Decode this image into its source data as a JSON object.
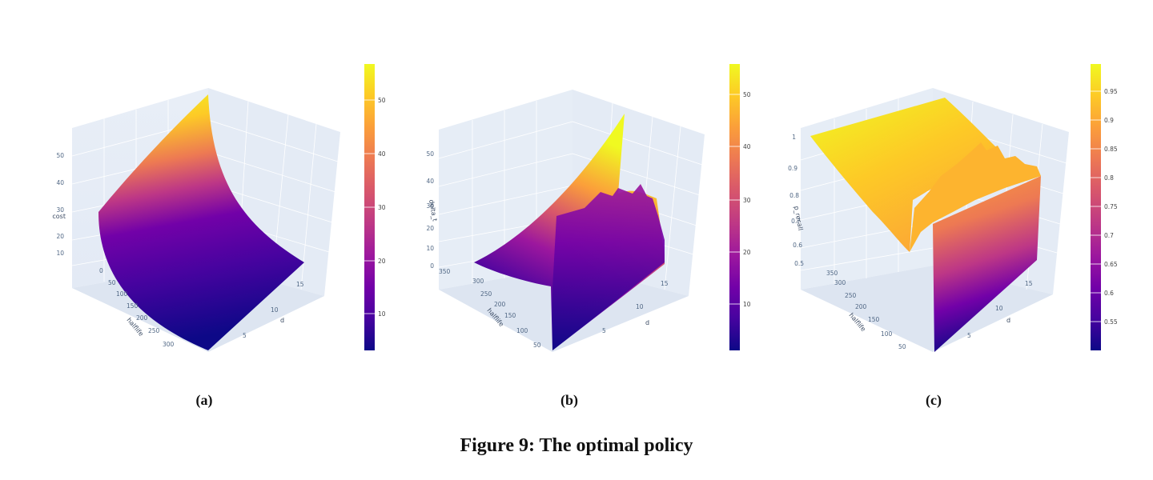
{
  "colors": {
    "scene_wall": "#e5ecf6",
    "grid": "#ffffff",
    "colorscale": [
      "#0d0887",
      "#46039f",
      "#7201a8",
      "#9c179e",
      "#bd3786",
      "#d8576b",
      "#ed7953",
      "#fb9f3a",
      "#fdca26",
      "#f0f921"
    ]
  },
  "figure_caption": "Figure 9: The optimal policy",
  "chart_data": [
    {
      "type": "surface3d",
      "label": "(a)",
      "axes": {
        "x": {
          "title": "halflife",
          "ticks": [
            "0",
            "50",
            "100",
            "150",
            "200",
            "250",
            "300"
          ]
        },
        "y": {
          "title": "d",
          "ticks": [
            "5",
            "10",
            "15"
          ]
        },
        "z": {
          "title": "cost",
          "ticks": [
            "10",
            "20",
            "30",
            "40",
            "50"
          ]
        }
      },
      "colorbar": {
        "ticks": [
          "10",
          "20",
          "30",
          "40",
          "50"
        ],
        "range": [
          2,
          57
        ]
      }
    },
    {
      "type": "surface3d",
      "label": "(b)",
      "axes": {
        "x": {
          "title": "halflife",
          "ticks": [
            "50",
            "100",
            "150",
            "200",
            "250",
            "300",
            "350"
          ]
        },
        "y": {
          "title": "d",
          "ticks": [
            "5",
            "10",
            "15"
          ]
        },
        "z": {
          "title": "delta_t",
          "ticks": [
            "0",
            "10",
            "20",
            "30",
            "40",
            "50"
          ]
        }
      },
      "colorbar": {
        "ticks": [
          "10",
          "20",
          "30",
          "40",
          "50"
        ],
        "range": [
          1,
          55
        ]
      }
    },
    {
      "type": "surface3d",
      "label": "(c)",
      "axes": {
        "x": {
          "title": "halflife",
          "ticks": [
            "50",
            "100",
            "150",
            "200",
            "250",
            "300",
            "350"
          ]
        },
        "y": {
          "title": "d",
          "ticks": [
            "5",
            "10",
            "15"
          ]
        },
        "z": {
          "title": "p_recall",
          "ticks": [
            "0.5",
            "0.6",
            "0.7",
            "0.8",
            "0.9",
            "1"
          ]
        }
      },
      "colorbar": {
        "ticks": [
          "0.55",
          "0.6",
          "0.65",
          "0.7",
          "0.75",
          "0.8",
          "0.85",
          "0.9",
          "0.95"
        ],
        "range": [
          0.5,
          1.0
        ]
      }
    }
  ]
}
